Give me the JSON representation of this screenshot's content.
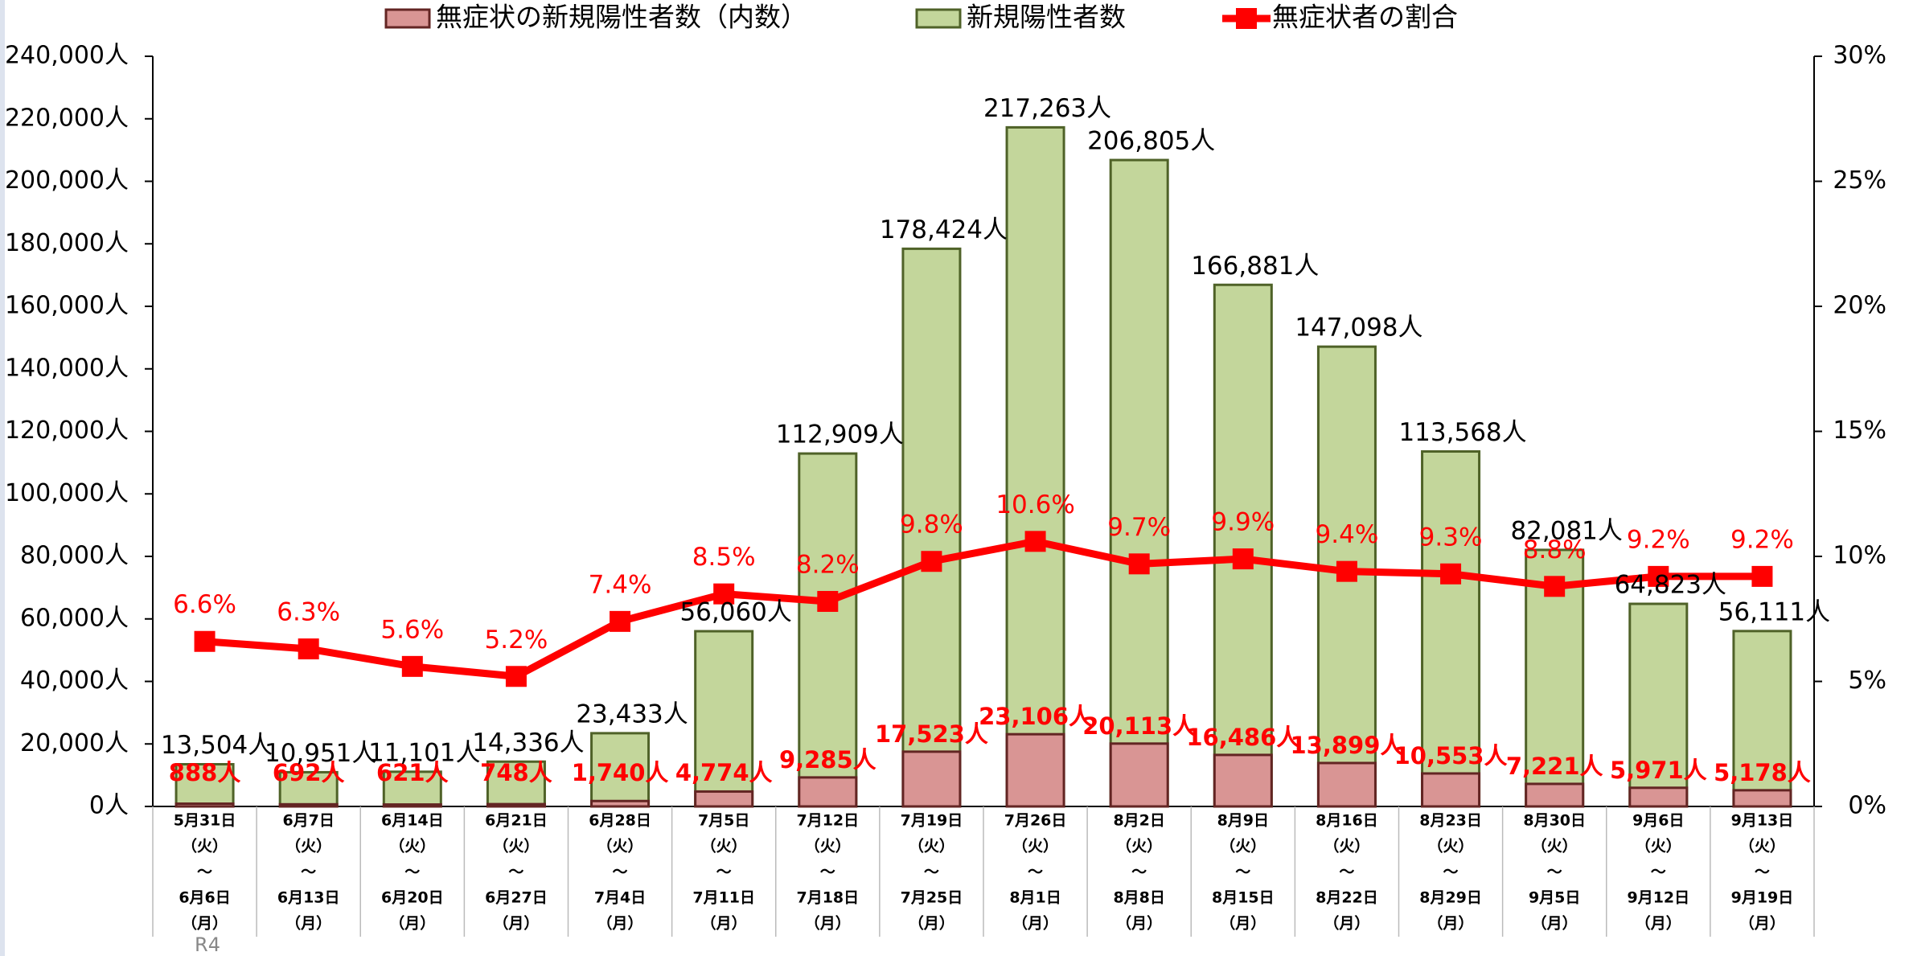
{
  "chart_data": {
    "type": "bar-line",
    "categories": [
      [
        "5月31日",
        "（火）",
        "～",
        "6月6日",
        "（月）"
      ],
      [
        "6月7日",
        "（火）",
        "～",
        "6月13日",
        "（月）"
      ],
      [
        "6月14日",
        "（火）",
        "～",
        "6月20日",
        "（月）"
      ],
      [
        "6月21日",
        "（火）",
        "～",
        "6月27日",
        "（月）"
      ],
      [
        "6月28日",
        "（火）",
        "～",
        "7月4日",
        "（月）"
      ],
      [
        "7月5日",
        "（火）",
        "～",
        "7月11日",
        "（月）"
      ],
      [
        "7月12日",
        "（火）",
        "～",
        "7月18日",
        "（月）"
      ],
      [
        "7月19日",
        "（火）",
        "～",
        "7月25日",
        "（月）"
      ],
      [
        "7月26日",
        "（火）",
        "～",
        "8月1日",
        "（月）"
      ],
      [
        "8月2日",
        "（火）",
        "～",
        "8月8日",
        "（月）"
      ],
      [
        "8月9日",
        "（火）",
        "～",
        "8月15日",
        "（月）"
      ],
      [
        "8月16日",
        "（火）",
        "～",
        "8月22日",
        "（月）"
      ],
      [
        "8月23日",
        "（火）",
        "～",
        "8月29日",
        "（月）"
      ],
      [
        "8月30日",
        "（火）",
        "～",
        "9月5日",
        "（月）"
      ],
      [
        "9月6日",
        "（火）",
        "～",
        "9月12日",
        "（月）"
      ],
      [
        "9月13日",
        "（火）",
        "～",
        "9月19日",
        "（月）"
      ]
    ],
    "annotation": "R4",
    "series": [
      {
        "name": "無症状の新規陽性者数（内数）",
        "type": "bar",
        "color": "#d99594",
        "edge": "#632523",
        "values": [
          888,
          692,
          621,
          748,
          1740,
          4774,
          9285,
          17523,
          23106,
          20113,
          16486,
          13899,
          10553,
          7221,
          5971,
          5178
        ],
        "value_labels": [
          "888人",
          "692人",
          "621人",
          "748人",
          "1,740人",
          "4,774人",
          "9,285人",
          "17,523人",
          "23,106人",
          "20,113人",
          "16,486人",
          "13,899人",
          "10,553人",
          "7,221人",
          "5,971人",
          "5,178人"
        ]
      },
      {
        "name": "新規陽性者数",
        "type": "bar",
        "color": "#c3d69b",
        "edge": "#4f6228",
        "values": [
          13504,
          10951,
          11101,
          14336,
          23433,
          56060,
          112909,
          178424,
          217263,
          206805,
          166881,
          147098,
          113568,
          82081,
          64823,
          56111
        ],
        "value_labels": [
          "13,504人",
          "10,951人",
          "11,101人",
          "14,336人",
          "23,433人",
          "56,060人",
          "112,909人",
          "178,424人",
          "217,263人",
          "206,805人",
          "166,881人",
          "147,098人",
          "113,568人",
          "82,081人",
          "64,823人",
          "56,111人"
        ]
      },
      {
        "name": "無症状者の割合",
        "type": "line",
        "axis": "y2",
        "color": "#ff0000",
        "values": [
          6.6,
          6.3,
          5.6,
          5.2,
          7.4,
          8.5,
          8.2,
          9.8,
          10.6,
          9.7,
          9.9,
          9.4,
          9.3,
          8.8,
          9.2,
          9.2
        ],
        "value_labels": [
          "6.6%",
          "6.3%",
          "5.6%",
          "5.2%",
          "7.4%",
          "8.5%",
          "8.2%",
          "9.8%",
          "10.6%",
          "9.7%",
          "9.9%",
          "9.4%",
          "9.3%",
          "8.8%",
          "9.2%",
          "9.2%"
        ]
      }
    ],
    "ylim": [
      0,
      240000
    ],
    "yticks": [
      {
        "value": 0,
        "label": "0人"
      },
      {
        "value": 20000,
        "label": "20,000人"
      },
      {
        "value": 40000,
        "label": "40,000人"
      },
      {
        "value": 60000,
        "label": "60,000人"
      },
      {
        "value": 80000,
        "label": "80,000人"
      },
      {
        "value": 100000,
        "label": "100,000人"
      },
      {
        "value": 120000,
        "label": "120,000人"
      },
      {
        "value": 140000,
        "label": "140,000人"
      },
      {
        "value": 160000,
        "label": "160,000人"
      },
      {
        "value": 180000,
        "label": "180,000人"
      },
      {
        "value": 200000,
        "label": "200,000人"
      },
      {
        "value": 220000,
        "label": "220,000人"
      },
      {
        "value": 240000,
        "label": "240,000人"
      }
    ],
    "y2lim": [
      0,
      30
    ],
    "y2ticks": [
      {
        "value": 0,
        "label": "0%"
      },
      {
        "value": 5,
        "label": "5%"
      },
      {
        "value": 10,
        "label": "10%"
      },
      {
        "value": 15,
        "label": "15%"
      },
      {
        "value": 20,
        "label": "20%"
      },
      {
        "value": 25,
        "label": "25%"
      },
      {
        "value": 30,
        "label": "30%"
      }
    ],
    "grid": false,
    "legend": "top"
  }
}
